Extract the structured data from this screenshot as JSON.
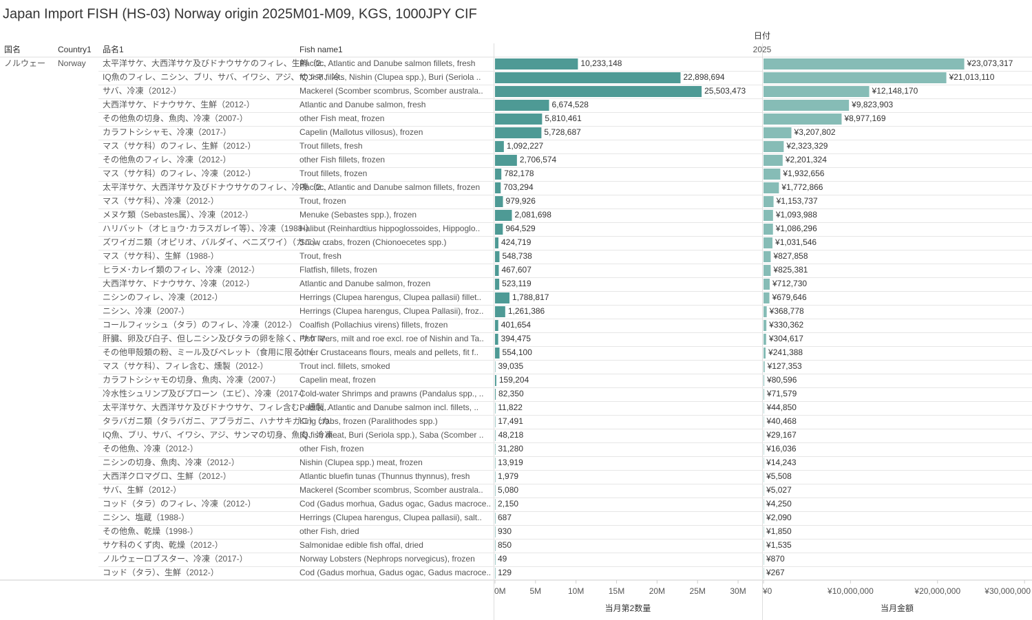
{
  "chart_data": {
    "type": "bar",
    "orientation": "horizontal",
    "title": "Japan Import FISH (HS-03) Norway origin 2025M01-M09, KGS, 1000JPY CIF",
    "headers": {
      "country_jp": "国名",
      "country_en": "Country1",
      "item_jp": "品名1",
      "item_en": "Fish name1",
      "date": "日付",
      "year": "2025"
    },
    "country_jp": "ノルウェー",
    "country_en": "Norway",
    "categories": [
      "太平洋サケ、大西洋サケ及びドナウサケのフィレ、生鮮（2..",
      "IQ魚のフィレ、ニシン、ブリ、サバ、イワシ、アジ、サンマ、冷..",
      "サバ、冷凍（2012-）",
      "大西洋サケ、ドナウサケ、生鮮（2012-）",
      "その他魚の切身、魚肉、冷凍（2007-）",
      "カラフトシシャモ、冷凍（2017-）",
      "マス（サケ科）のフィレ、生鮮（2012-）",
      "その他魚のフィレ、冷凍（2012-）",
      "マス（サケ科）のフィレ、冷凍（2012-）",
      "太平洋サケ、大西洋サケ及びドナウサケのフィレ、冷凍（2..",
      "マス（サケ科）、冷凍（2012-）",
      "メヌケ類（Sebastes属）、冷凍（2012-）",
      "ハリバット（オヒョウ･カラスガレイ等）、冷凍（1988-）",
      "ズワイガニ類（オピリオ、バルダイ、ベニズワイ）（カニ）、..",
      "マス（サケ科）、生鮮（1988-）",
      "ヒラメ･カレイ類のフィレ、冷凍（2012-）",
      "大西洋サケ、ドナウサケ、冷凍（2012-）",
      "ニシンのフィレ、冷凍（2012-）",
      "ニシン、冷凍（2007-）",
      "コールフィッシュ（タラ）のフィレ、冷凍（2012-）",
      "肝臓、卵及び白子、但しニシン及びタラの卵を除く、サケマ..",
      "その他甲殻類の粉、ミール及びペレット（食用に限る）（..",
      "マス（サケ科）、フィレ含む、燻製（2012-）",
      "カラフトシシャモの切身、魚肉、冷凍（2007-）",
      "冷水性シュリンプ及びプローン（エビ）、冷凍（2017-）",
      "太平洋サケ、大西洋サケ及びドナウサケ、フィレ含む、燻製..",
      "タラバガニ類（タラバガニ、アブラガニ、ハナサキガニ）（カ..",
      "IQ魚、ブリ、サバ、イワシ、アジ、サンマの切身、魚肉、冷凍..",
      "その他魚、冷凍（2012-）",
      "ニシンの切身、魚肉、冷凍（2012-）",
      "大西洋クロマグロ、生鮮（2012-）",
      "サバ、生鮮（2012-）",
      "コッド（タラ）のフィレ、冷凍（2012-）",
      "ニシン、塩蔵（1988-）",
      "その他魚、乾燥（1998-）",
      "サケ科のくず肉、乾燥（2012-）",
      "ノルウェーロブスター、冷凍（2017-）",
      "コッド（タラ）、生鮮（2012-）"
    ],
    "categories_en": [
      "Pacific, Atlantic and Danube salmon fillets, fresh",
      "IQ fish fillets, Nishin (Clupea spp.), Buri (Seriola ..",
      "Mackerel (Scomber scombrus, Scomber australa..",
      "Atlantic and Danube salmon, fresh",
      "other Fish meat, frozen",
      "Capelin (Mallotus villosus), frozen",
      "Trout fillets, fresh",
      "other Fish fillets, frozen",
      "Trout fillets, frozen",
      "Pacific, Atlantic and Danube salmon fillets, frozen",
      "Trout, frozen",
      "Menuke (Sebastes spp.), frozen",
      "Halibut (Reinhardtius hippoglossoides, Hippoglo..",
      "Snow crabs, frozen (Chionoecetes spp.)",
      "Trout, fresh",
      "Flatfish, fillets, frozen",
      "Atlantic and Danube salmon, frozen",
      "Herrings (Clupea harengus, Clupea pallasii) fillet..",
      "Herrings (Clupea harengus, Clupea Pallasii), froz..",
      "Coalfish (Pollachius virens) fillets, frozen",
      "Fish livers, milt and roe excl. roe of Nishin and Ta..",
      "other Crustaceans flours, meals and pellets, fit f..",
      "Trout incl. fillets, smoked",
      "Capelin meat, frozen",
      "Cold-water Shrimps and prawns (Pandalus spp., ..",
      "Pacific, Atlantic and Danube salmon incl. fillets, ..",
      "King crabs, frozen (Paralithodes spp.)",
      "IQ fish meat,  Buri (Seriola spp.), Saba (Scomber ..",
      "other Fish, frozen",
      "Nishin (Clupea spp.) meat, frozen",
      "Atlantic bluefin tunas (Thunnus thynnus), fresh",
      "Mackerel (Scomber scombrus, Scomber australa..",
      "Cod (Gadus morhua, Gadus ogac, Gadus macroce..",
      "Herrings (Clupea harengus, Clupea pallasii), salt..",
      "other Fish, dried",
      "Salmonidae edible fish offal, dried",
      "Norway Lobsters (Nephrops norvegicus), frozen",
      "Cod (Gadus morhua, Gadus ogac, Gadus macroce.."
    ],
    "series": [
      {
        "name": "当月第2数量",
        "color": "#4e9a95",
        "values": [
          10233148,
          22898694,
          25503473,
          6674528,
          5810461,
          5728687,
          1092227,
          2706574,
          782178,
          703294,
          979926,
          2081698,
          964529,
          424719,
          548738,
          467607,
          523119,
          1788817,
          1261386,
          401654,
          394475,
          554100,
          39035,
          159204,
          82350,
          11822,
          17491,
          48218,
          31280,
          13919,
          1979,
          5080,
          2150,
          687,
          930,
          850,
          49,
          129
        ],
        "value_labels": [
          "10,233,148",
          "22,898,694",
          "25,503,473",
          "6,674,528",
          "5,810,461",
          "5,728,687",
          "1,092,227",
          "2,706,574",
          "782,178",
          "703,294",
          "979,926",
          "2,081,698",
          "964,529",
          "424,719",
          "548,738",
          "467,607",
          "523,119",
          "1,788,817",
          "1,261,386",
          "401,654",
          "394,475",
          "554,100",
          "39,035",
          "159,204",
          "82,350",
          "11,822",
          "17,491",
          "48,218",
          "31,280",
          "13,919",
          "1,979",
          "5,080",
          "2,150",
          "687",
          "930",
          "850",
          "49",
          "129"
        ],
        "xlim": [
          0,
          32800000
        ],
        "xticks": [
          {
            "value": 0,
            "label": "0M"
          },
          {
            "value": 5000000,
            "label": "5M"
          },
          {
            "value": 10000000,
            "label": "10M"
          },
          {
            "value": 15000000,
            "label": "15M"
          },
          {
            "value": 20000000,
            "label": "20M"
          },
          {
            "value": 25000000,
            "label": "25M"
          },
          {
            "value": 30000000,
            "label": "30M"
          }
        ]
      },
      {
        "name": "当月金額",
        "color": "#86bcb6",
        "values": [
          23073317,
          21013110,
          12148170,
          9823903,
          8977169,
          3207802,
          2323329,
          2201324,
          1932656,
          1772866,
          1153737,
          1093988,
          1086296,
          1031546,
          827858,
          825381,
          712730,
          679646,
          368778,
          330362,
          304617,
          241388,
          127353,
          80596,
          71579,
          44850,
          40468,
          29167,
          16036,
          14243,
          5508,
          5027,
          4250,
          2090,
          1850,
          1535,
          870,
          267
        ],
        "value_labels": [
          "¥23,073,317",
          "¥21,013,110",
          "¥12,148,170",
          "¥9,823,903",
          "¥8,977,169",
          "¥3,207,802",
          "¥2,323,329",
          "¥2,201,324",
          "¥1,932,656",
          "¥1,772,866",
          "¥1,153,737",
          "¥1,093,988",
          "¥1,086,296",
          "¥1,031,546",
          "¥827,858",
          "¥825,381",
          "¥712,730",
          "¥679,646",
          "¥368,778",
          "¥330,362",
          "¥304,617",
          "¥241,388",
          "¥127,353",
          "¥80,596",
          "¥71,579",
          "¥44,850",
          "¥40,468",
          "¥29,167",
          "¥16,036",
          "¥14,243",
          "¥5,508",
          "¥5,027",
          "¥4,250",
          "¥2,090",
          "¥1,850",
          "¥1,535",
          "¥870",
          "¥267"
        ],
        "xlim": [
          0,
          30700000
        ],
        "xticks": [
          {
            "value": 0,
            "label": "¥0"
          },
          {
            "value": 10000000,
            "label": "¥10,000,000"
          },
          {
            "value": 20000000,
            "label": "¥20,000,000"
          },
          {
            "value": 30000000,
            "label": "¥30,000,000"
          }
        ]
      }
    ]
  }
}
